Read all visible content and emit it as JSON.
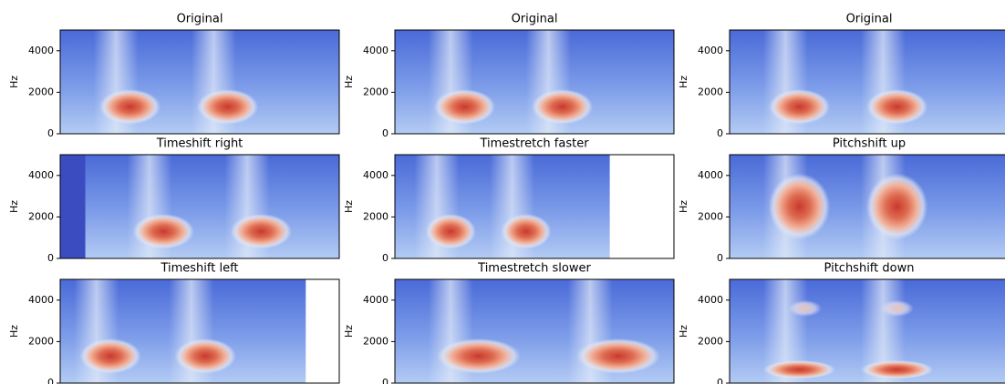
{
  "chart_data": [
    {
      "type": "spectrogram",
      "title": "Original",
      "ylabel": "Hz",
      "ylim": [
        0,
        5000
      ],
      "yticks": [
        0,
        2000,
        4000
      ]
    },
    {
      "type": "spectrogram",
      "title": "Original",
      "ylabel": "Hz",
      "ylim": [
        0,
        5000
      ],
      "yticks": [
        0,
        2000,
        4000
      ]
    },
    {
      "type": "spectrogram",
      "title": "Original",
      "ylabel": "Hz",
      "ylim": [
        0,
        5000
      ],
      "yticks": [
        0,
        2000,
        4000
      ]
    },
    {
      "type": "spectrogram",
      "title": "Timeshift right",
      "ylabel": "Hz",
      "ylim": [
        0,
        5000
      ],
      "yticks": [
        0,
        2000,
        4000
      ]
    },
    {
      "type": "spectrogram",
      "title": "Timestretch faster",
      "ylabel": "Hz",
      "ylim": [
        0,
        5000
      ],
      "yticks": [
        0,
        2000,
        4000
      ]
    },
    {
      "type": "spectrogram",
      "title": "Pitchshift up",
      "ylabel": "Hz",
      "ylim": [
        0,
        5000
      ],
      "yticks": [
        0,
        2000,
        4000
      ]
    },
    {
      "type": "spectrogram",
      "title": "Timeshift left",
      "ylabel": "Hz",
      "ylim": [
        0,
        5000
      ],
      "yticks": [
        0,
        2000,
        4000
      ]
    },
    {
      "type": "spectrogram",
      "title": "Timestretch slower",
      "ylabel": "Hz",
      "ylim": [
        0,
        5000
      ],
      "yticks": [
        0,
        2000,
        4000
      ]
    },
    {
      "type": "spectrogram",
      "title": "Pitchshift down",
      "ylabel": "Hz",
      "ylim": [
        0,
        5000
      ],
      "yticks": [
        0,
        2000,
        4000
      ]
    }
  ]
}
